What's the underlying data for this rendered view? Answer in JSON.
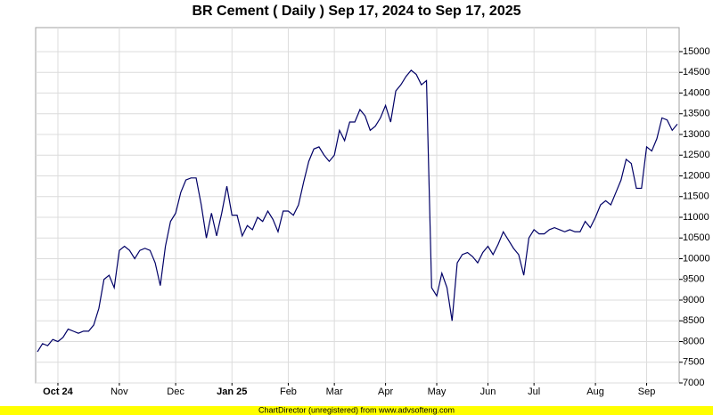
{
  "chart_data": {
    "type": "line",
    "title": "BR Cement ( Daily ) Sep 17, 2024 to Sep 17, 2025",
    "footer": "ChartDirector (unregistered) from www.advsofteng.com",
    "categories": [
      null,
      null,
      null,
      null,
      "Oct 24",
      null,
      null,
      null,
      null,
      null,
      null,
      null,
      null,
      null,
      null,
      null,
      "Nov",
      null,
      null,
      null,
      null,
      null,
      null,
      null,
      null,
      null,
      null,
      "Dec",
      null,
      null,
      null,
      null,
      null,
      null,
      null,
      null,
      null,
      null,
      "Jan 25",
      null,
      null,
      null,
      null,
      null,
      null,
      null,
      null,
      null,
      null,
      "Feb",
      null,
      null,
      null,
      null,
      null,
      null,
      null,
      null,
      "Mar",
      null,
      null,
      null,
      null,
      null,
      null,
      null,
      null,
      null,
      "Apr",
      null,
      null,
      null,
      null,
      null,
      null,
      null,
      null,
      null,
      "May",
      null,
      null,
      null,
      null,
      null,
      null,
      null,
      null,
      null,
      "Jun",
      null,
      null,
      null,
      null,
      null,
      null,
      null,
      null,
      "Jul",
      null,
      null,
      null,
      null,
      null,
      null,
      null,
      null,
      null,
      null,
      null,
      "Aug",
      null,
      null,
      null,
      null,
      null,
      null,
      null,
      null,
      null,
      "Sep",
      null,
      null,
      null,
      null,
      null,
      null
    ],
    "values": [
      7750,
      7950,
      7900,
      8050,
      8000,
      8100,
      8300,
      8250,
      8200,
      8250,
      8250,
      8400,
      8800,
      9500,
      9600,
      9300,
      10200,
      10300,
      10200,
      10000,
      10200,
      10250,
      10200,
      9900,
      9350,
      10300,
      10900,
      11100,
      11600,
      11900,
      11950,
      11950,
      11300,
      10500,
      11100,
      10550,
      11100,
      11750,
      11050,
      11050,
      10550,
      10800,
      10700,
      11000,
      10900,
      11150,
      10950,
      10650,
      11150,
      11150,
      11050,
      11300,
      11850,
      12350,
      12650,
      12700,
      12500,
      12350,
      12500,
      13100,
      12850,
      13300,
      13300,
      13600,
      13450,
      13100,
      13200,
      13400,
      13700,
      13300,
      14050,
      14200,
      14400,
      14550,
      14450,
      14200,
      14300,
      9300,
      9100,
      9650,
      9300,
      8500,
      9900,
      10100,
      10150,
      10050,
      9900,
      10150,
      10300,
      10100,
      10350,
      10650,
      10450,
      10250,
      10100,
      9600,
      10500,
      10700,
      10600,
      10600,
      10700,
      10750,
      10700,
      10650,
      10700,
      10650,
      10650,
      10900,
      10750,
      11000,
      11300,
      11400,
      11300,
      11600,
      11900,
      12400,
      12300,
      11700,
      11700,
      12700,
      12600,
      12900,
      13400,
      13350,
      13100,
      13250
    ],
    "color": "#000066",
    "ylim": [
      7000,
      15580
    ],
    "yticks": [
      7000,
      7500,
      8000,
      8500,
      9000,
      9500,
      10000,
      10500,
      11000,
      11500,
      12000,
      12500,
      13000,
      13500,
      14000,
      14500,
      15000
    ],
    "grid": true
  }
}
